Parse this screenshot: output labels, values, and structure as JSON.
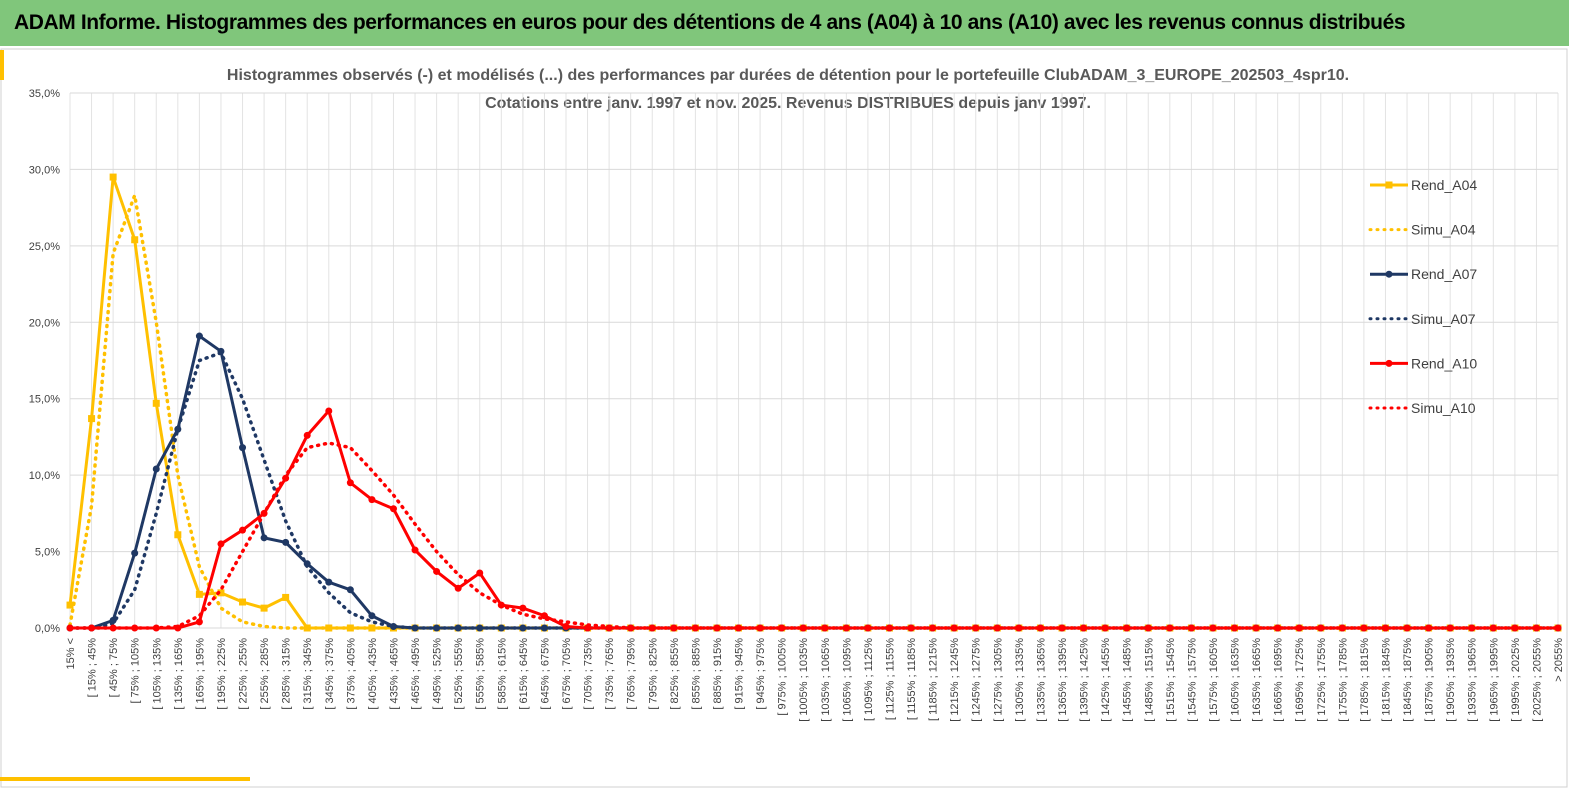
{
  "header": {
    "title": "ADAM Informe. Histogrammes des performances en euros pour des détentions de 4 ans (A04) à 10 ans (A10) avec les revenus connus distribués"
  },
  "chart_data": {
    "type": "line",
    "title": "Histogrammes observés (-) et modélisés (...) des performances par durées de détention pour le portefeuille ClubADAM_3_EUROPE_202503_4spr10.",
    "subtitle": "Cotations entre janv. 1997 et nov. 2025. Revenus DISTRIBUES depuis janv 1997.",
    "categories": [
      "15% <",
      "[ 15% ; 45%",
      "[ 45% ; 75%",
      "[ 75% ; 105%",
      "[ 105% ; 135%",
      "[ 135% ; 165%",
      "[ 165% ; 195%",
      "[ 195% ; 225%",
      "[ 225% ; 255%",
      "[ 255% ; 285%",
      "[ 285% ; 315%",
      "[ 315% ; 345%",
      "[ 345% ; 375%",
      "[ 375% ; 405%",
      "[ 405% ; 435%",
      "[ 435% ; 465%",
      "[ 465% ; 495%",
      "[ 495% ; 525%",
      "[ 525% ; 555%",
      "[ 555% ; 585%",
      "[ 585% ; 615%",
      "[ 615% ; 645%",
      "[ 645% ; 675%",
      "[ 675% ; 705%",
      "[ 705% ; 735%",
      "[ 735% ; 765%",
      "[ 765% ; 795%",
      "[ 795% ; 825%",
      "[ 825% ; 855%",
      "[ 855% ; 885%",
      "[ 885% ; 915%",
      "[ 915% ; 945%",
      "[ 945% ; 975%",
      "[ 975% ; 1005%",
      "[ 1005% ; 1035%",
      "[ 1035% ; 1065%",
      "[ 1065% ; 1095%",
      "[ 1095% ; 1125%",
      "[ 1125% ; 1155%",
      "[ 1155% ; 1185%",
      "[ 1185% ; 1215%",
      "[ 1215% ; 1245%",
      "[ 1245% ; 1275%",
      "[ 1275% ; 1305%",
      "[ 1305% ; 1335%",
      "[ 1335% ; 1365%",
      "[ 1365% ; 1395%",
      "[ 1395% ; 1425%",
      "[ 1425% ; 1455%",
      "[ 1455% ; 1485%",
      "[ 1485% ; 1515%",
      "[ 1515% ; 1545%",
      "[ 1545% ; 1575%",
      "[ 1575% ; 1605%",
      "[ 1605% ; 1635%",
      "[ 1635% ; 1665%",
      "[ 1665% ; 1695%",
      "[ 1695% ; 1725%",
      "[ 1725% ; 1755%",
      "[ 1755% ; 1785%",
      "[ 1785% ; 1815%",
      "[ 1815% ; 1845%",
      "[ 1845% ; 1875%",
      "[ 1875% ; 1905%",
      "[ 1905% ; 1935%",
      "[ 1935% ; 1965%",
      "[ 1965% ; 1995%",
      "[ 1995% ; 2025%",
      "[ 2025% ; 2055%",
      "> 2055%"
    ],
    "series": [
      {
        "name": "Rend_A04",
        "color": "#ffc000",
        "line_style": "solid",
        "marker": "square",
        "values": [
          1.5,
          13.7,
          29.5,
          25.4,
          14.7,
          6.1,
          2.2,
          2.3,
          1.7,
          1.3,
          2.0,
          0,
          0,
          0,
          0,
          0,
          0,
          0,
          0,
          0,
          0,
          0,
          0,
          0,
          0,
          0,
          0,
          0,
          0,
          0,
          0,
          0,
          0,
          0,
          0,
          0,
          0,
          0,
          0,
          0,
          0,
          0,
          0,
          0,
          0,
          0,
          0,
          0,
          0,
          0,
          0,
          0,
          0,
          0,
          0,
          0,
          0,
          0,
          0,
          0,
          0,
          0,
          0,
          0,
          0,
          0,
          0,
          0,
          0,
          0
        ]
      },
      {
        "name": "Simu_A04",
        "color": "#ffc000",
        "line_style": "dotted",
        "marker": "none",
        "values": [
          0.2,
          8,
          24.5,
          28.3,
          20,
          10,
          4,
          1.3,
          0.4,
          0.1,
          0,
          0,
          0,
          0,
          0,
          0,
          0,
          0,
          0,
          0,
          0,
          0,
          0,
          0,
          0,
          0,
          0,
          0,
          0,
          0,
          0,
          0,
          0,
          0,
          0,
          0,
          0,
          0,
          0,
          0,
          0,
          0,
          0,
          0,
          0,
          0,
          0,
          0,
          0,
          0,
          0,
          0,
          0,
          0,
          0,
          0,
          0,
          0,
          0,
          0,
          0,
          0,
          0,
          0,
          0,
          0,
          0,
          0,
          0,
          0
        ]
      },
      {
        "name": "Rend_A07",
        "color": "#1f3864",
        "line_style": "solid",
        "marker": "circle",
        "values": [
          0,
          0,
          0.5,
          4.9,
          10.4,
          13.0,
          19.1,
          18.1,
          11.8,
          5.9,
          5.6,
          4.2,
          3.0,
          2.5,
          0.8,
          0.1,
          0,
          0,
          0,
          0,
          0,
          0,
          0,
          0,
          0,
          0,
          0,
          0,
          0,
          0,
          0,
          0,
          0,
          0,
          0,
          0,
          0,
          0,
          0,
          0,
          0,
          0,
          0,
          0,
          0,
          0,
          0,
          0,
          0,
          0,
          0,
          0,
          0,
          0,
          0,
          0,
          0,
          0,
          0,
          0,
          0,
          0,
          0,
          0,
          0,
          0,
          0,
          0,
          0,
          0
        ]
      },
      {
        "name": "Simu_A07",
        "color": "#1f3864",
        "line_style": "dotted",
        "marker": "none",
        "values": [
          0,
          0,
          0.3,
          2.5,
          7.5,
          13,
          17.5,
          18,
          15,
          11,
          7,
          4,
          2.3,
          1,
          0.4,
          0.1,
          0,
          0,
          0,
          0,
          0,
          0,
          0,
          0,
          0,
          0,
          0,
          0,
          0,
          0,
          0,
          0,
          0,
          0,
          0,
          0,
          0,
          0,
          0,
          0,
          0,
          0,
          0,
          0,
          0,
          0,
          0,
          0,
          0,
          0,
          0,
          0,
          0,
          0,
          0,
          0,
          0,
          0,
          0,
          0,
          0,
          0,
          0,
          0,
          0,
          0,
          0,
          0,
          0,
          0
        ]
      },
      {
        "name": "Rend_A10",
        "color": "#ff0000",
        "line_style": "solid",
        "marker": "circle",
        "values": [
          0,
          0,
          0,
          0,
          0,
          0,
          0.4,
          5.5,
          6.4,
          7.5,
          9.8,
          12.6,
          14.2,
          9.5,
          8.4,
          7.8,
          5.1,
          3.7,
          2.6,
          3.6,
          1.5,
          1.3,
          0.8,
          0.1,
          0,
          0,
          0,
          0,
          0,
          0,
          0,
          0,
          0,
          0,
          0,
          0,
          0,
          0,
          0,
          0,
          0,
          0,
          0,
          0,
          0,
          0,
          0,
          0,
          0,
          0,
          0,
          0,
          0,
          0,
          0,
          0,
          0,
          0,
          0,
          0,
          0,
          0,
          0,
          0,
          0,
          0,
          0,
          0,
          0,
          0
        ]
      },
      {
        "name": "Simu_A10",
        "color": "#ff0000",
        "line_style": "dotted",
        "marker": "none",
        "values": [
          0,
          0,
          0,
          0,
          0,
          0.1,
          0.8,
          2.5,
          5,
          7.5,
          10,
          11.8,
          12.1,
          11.8,
          10.3,
          8.7,
          6.8,
          5,
          3.5,
          2.3,
          1.5,
          0.9,
          0.6,
          0.4,
          0.2,
          0.1,
          0,
          0,
          0,
          0,
          0,
          0,
          0,
          0,
          0,
          0,
          0,
          0,
          0,
          0,
          0,
          0,
          0,
          0,
          0,
          0,
          0,
          0,
          0,
          0,
          0,
          0,
          0,
          0,
          0,
          0,
          0,
          0,
          0,
          0,
          0,
          0,
          0,
          0,
          0,
          0,
          0,
          0,
          0,
          0
        ]
      }
    ],
    "ylim": [
      0,
      35
    ],
    "yticks": [
      {
        "value": 0,
        "label": "0,0%"
      },
      {
        "value": 5,
        "label": "5,0%"
      },
      {
        "value": 10,
        "label": "10,0%"
      },
      {
        "value": 15,
        "label": "15,0%"
      },
      {
        "value": 20,
        "label": "20,0%"
      },
      {
        "value": 25,
        "label": "25,0%"
      },
      {
        "value": 30,
        "label": "30,0%"
      },
      {
        "value": 35,
        "label": "35,0%"
      }
    ],
    "grid": true,
    "legend": "right"
  }
}
